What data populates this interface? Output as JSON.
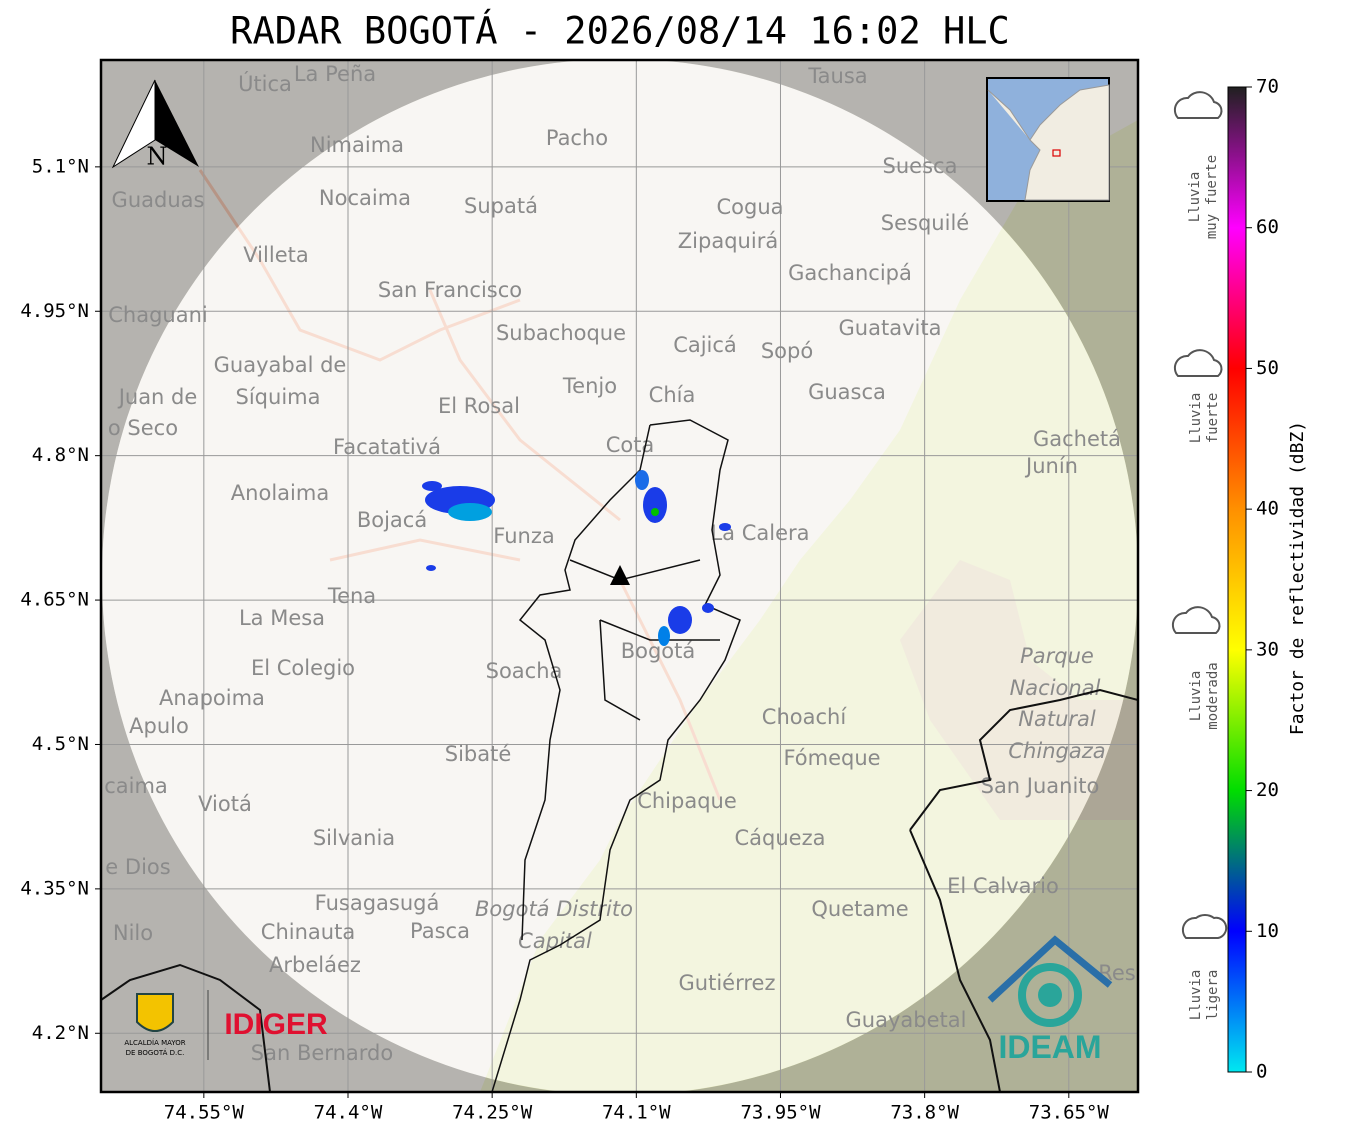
{
  "title": "RADAR BOGOTÁ - 2026/08/14 16:02 HLC",
  "map": {
    "xlim": [
      -74.657,
      -73.578
    ],
    "ylim": [
      4.139,
      5.211
    ],
    "xticks": [
      {
        "value": -74.55,
        "label": "74.55°W"
      },
      {
        "value": -74.4,
        "label": "74.4°W"
      },
      {
        "value": -74.25,
        "label": "74.25°W"
      },
      {
        "value": -74.1,
        "label": "74.1°W"
      },
      {
        "value": -73.95,
        "label": "73.95°W"
      },
      {
        "value": -73.8,
        "label": "73.8°W"
      },
      {
        "value": -73.65,
        "label": "73.65°W"
      }
    ],
    "yticks": [
      {
        "value": 5.1,
        "label": "5.1°N"
      },
      {
        "value": 4.95,
        "label": "4.95°N"
      },
      {
        "value": 4.8,
        "label": "4.8°N"
      },
      {
        "value": 4.65,
        "label": "4.65°N"
      },
      {
        "value": 4.5,
        "label": "4.5°N"
      },
      {
        "value": 4.35,
        "label": "4.35°N"
      },
      {
        "value": 4.2,
        "label": "4.2°N"
      }
    ],
    "grid": true,
    "places": [
      "Útica",
      "La Peña",
      "Tausa",
      "Pacho",
      "Nimaima",
      "Guaduas",
      "Nocaima",
      "Supatá",
      "Cogua",
      "Suesca",
      "Sesquilé",
      "Villeta",
      "Zipaquirá",
      "Gachancipá",
      "San Francisco",
      "Chaguani",
      "Subachoque",
      "Cajicá",
      "Sopó",
      "Guatavita",
      "Guayabal de",
      "Síquima",
      "Juan de",
      "o Seco",
      "Tenjo",
      "Chía",
      "El Rosal",
      "Guasca",
      "Facatativá",
      "Cota",
      "Gachetá",
      "Junín",
      "Anolaima",
      "Bojacá",
      "Funza",
      "La Calera",
      "Tena",
      "La Mesa",
      "El Colegio",
      "Soacha",
      "Bogotá",
      "Parque",
      "Nacional",
      "Natural",
      "Chingaza",
      "Anapoima",
      "Apulo",
      "Choachí",
      "Fómeque",
      "Sibaté",
      "San Juanito",
      "caima",
      "Viotá",
      "Chipaque",
      "Silvania",
      "Cáqueza",
      "e Dios",
      "El Calvario",
      "Fusagasugá",
      "Quetame",
      "Bogotá Distrito",
      "Capital",
      "Nilo",
      "Chinauta",
      "Pasca",
      "Arbeláez",
      "Gutiérrez",
      "Res",
      "Guayabetal",
      "San Bernardo"
    ],
    "north": "N"
  },
  "logos": {
    "alcaldia": [
      "ALCALDÍA MAYOR",
      "DE BOGOTÁ D.C."
    ],
    "idiger": "IDIGER",
    "ideam": "IDEAM"
  },
  "colorbar": {
    "label": "Factor de reflectividad (dBZ)",
    "lim": [
      0,
      70
    ],
    "ticks": [
      0,
      10,
      20,
      30,
      40,
      50,
      60,
      70
    ],
    "colors": [
      "#00e8f0",
      "#0000ff",
      "#00dd00",
      "#ffff00",
      "#ff9000",
      "#ff0000",
      "#ff00ff",
      "#202020"
    ],
    "categories": [
      [
        "Lluvia",
        "muy fuerte"
      ],
      [
        "Lluvia",
        "fuerte"
      ],
      [
        "Lluvia",
        "moderada"
      ],
      [
        "Lluvia",
        "ligera"
      ]
    ]
  }
}
